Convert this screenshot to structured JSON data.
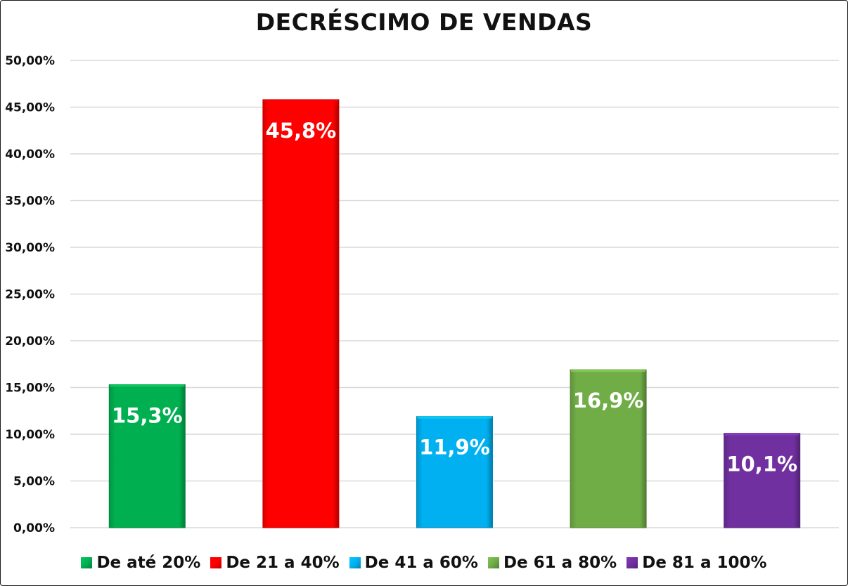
{
  "chart_data": {
    "type": "bar",
    "title": "DECRÉSCIMO  DE VENDAS",
    "categories": [
      "De até 20%",
      "De 21 a 40%",
      "De 41 a 60%",
      "De 61 a 80%",
      "De 81 a 100%"
    ],
    "values": [
      15.3,
      45.8,
      11.9,
      16.9,
      10.1
    ],
    "data_labels": [
      "15,3%",
      "45,8%",
      "11,9%",
      "16,9%",
      "10,1%"
    ],
    "colors": [
      "#00b050",
      "#ff0000",
      "#00b0f0",
      "#70ad47",
      "#7030a0"
    ],
    "ylim": [
      0,
      50
    ],
    "yticks": [
      0,
      5,
      10,
      15,
      20,
      25,
      30,
      35,
      40,
      45,
      50
    ],
    "ytick_labels": [
      "0,00%",
      "5,00%",
      "10,00%",
      "15,00%",
      "20,00%",
      "25,00%",
      "30,00%",
      "35,00%",
      "40,00%",
      "45,00%",
      "50,00%"
    ],
    "grid": true,
    "legend_position": "bottom",
    "xlabel": "",
    "ylabel": ""
  }
}
